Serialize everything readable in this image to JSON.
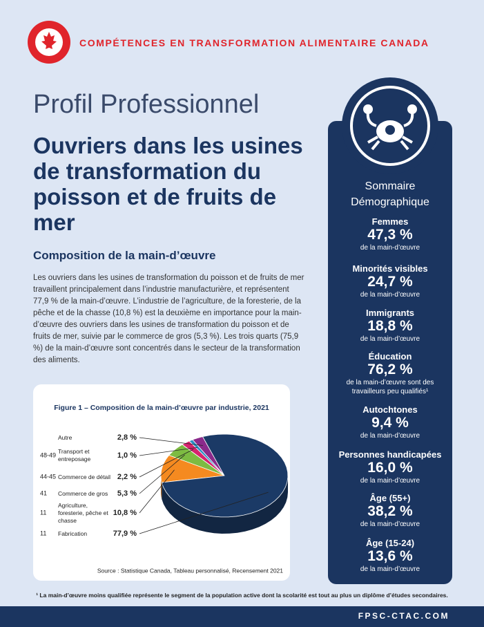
{
  "header": {
    "organization": "COMPÉTENCES EN TRANSFORMATION ALIMENTAIRE CANADA",
    "kicker": "Profil Professionnel",
    "title": "Ouvriers dans les usines de transformation du poisson et de fruits de mer"
  },
  "section": {
    "heading": "Composition de la main-d’œuvre",
    "paragraph": "Les ouvriers dans les usines de transformation du poisson et de fruits de mer travaillent principalement dans l’industrie manufacturière, et représentent 77,9 % de la main-d’œuvre. L’industrie de l’agriculture, de la foresterie, de la pêche et de la chasse (10,8 %) est la deuxième en importance pour la main-d’œuvre des ouvriers dans les usines de transformation du poisson et de fruits de mer, suivie par le commerce de gros (5,3 %). Les trois quarts (75,9 %) de la main-d’œuvre sont concentrés dans le secteur de la transformation des aliments."
  },
  "chart_data": {
    "type": "pie",
    "title": "Figure 1 – Composition de la main-d’œuvre par industrie, 2021",
    "codes": [
      null,
      "48-49",
      "44-45",
      "41",
      "11",
      "11"
    ],
    "categories": [
      "Autre",
      "Transport et entreposage",
      "Commerce de détail",
      "Commerce de gros",
      "Agriculture, foresterie, pêche et chasse",
      "Fabrication"
    ],
    "values": [
      2.8,
      1.0,
      2.2,
      5.3,
      10.8,
      77.9
    ],
    "value_labels": [
      "2,8 %",
      "1,0 %",
      "2,2 %",
      "5,3 %",
      "10,8 %",
      "77,9 %"
    ],
    "colors": [
      "#8b2a8b",
      "#2a8fc4",
      "#d6246e",
      "#7dbb42",
      "#f58a20",
      "#1b3a66"
    ],
    "source": "Source : Statistique Canada, Tableau personnalisé, Recensement 2021"
  },
  "sidebar": {
    "title": "Sommaire Démographique",
    "stats": [
      {
        "label": "Femmes",
        "value": "47,3 %",
        "note": "de la main-d’œuvre"
      },
      {
        "label": "Minorités visibles",
        "value": "24,7 %",
        "note": "de la main-d’œuvre"
      },
      {
        "label": "Immigrants",
        "value": "18,8 %",
        "note": "de la main-d’œuvre"
      },
      {
        "label": "Éducation",
        "value": "76,2 %",
        "note": "de la main-d’œuvre sont des travailleurs peu qualifiés¹"
      },
      {
        "label": "Autochtones",
        "value": "9,4 %",
        "note": "de la main-d’œuvre"
      },
      {
        "label": "Personnes handicapées",
        "value": "16,0 %",
        "note": "de la main-d’œuvre"
      },
      {
        "label": "Âge (55+)",
        "value": "38,2 %",
        "note": "de la main-d’œuvre"
      },
      {
        "label": "Âge (15-24)",
        "value": "13,6 %",
        "note": "de la main-d’œuvre"
      }
    ]
  },
  "footnote": "¹ La main-d’œuvre moins qualifiée représente le segment de la population active dont la scolarité est tout au plus un diplôme d’études secondaires.",
  "footer": {
    "url": "FPSC-CTAC.COM"
  }
}
